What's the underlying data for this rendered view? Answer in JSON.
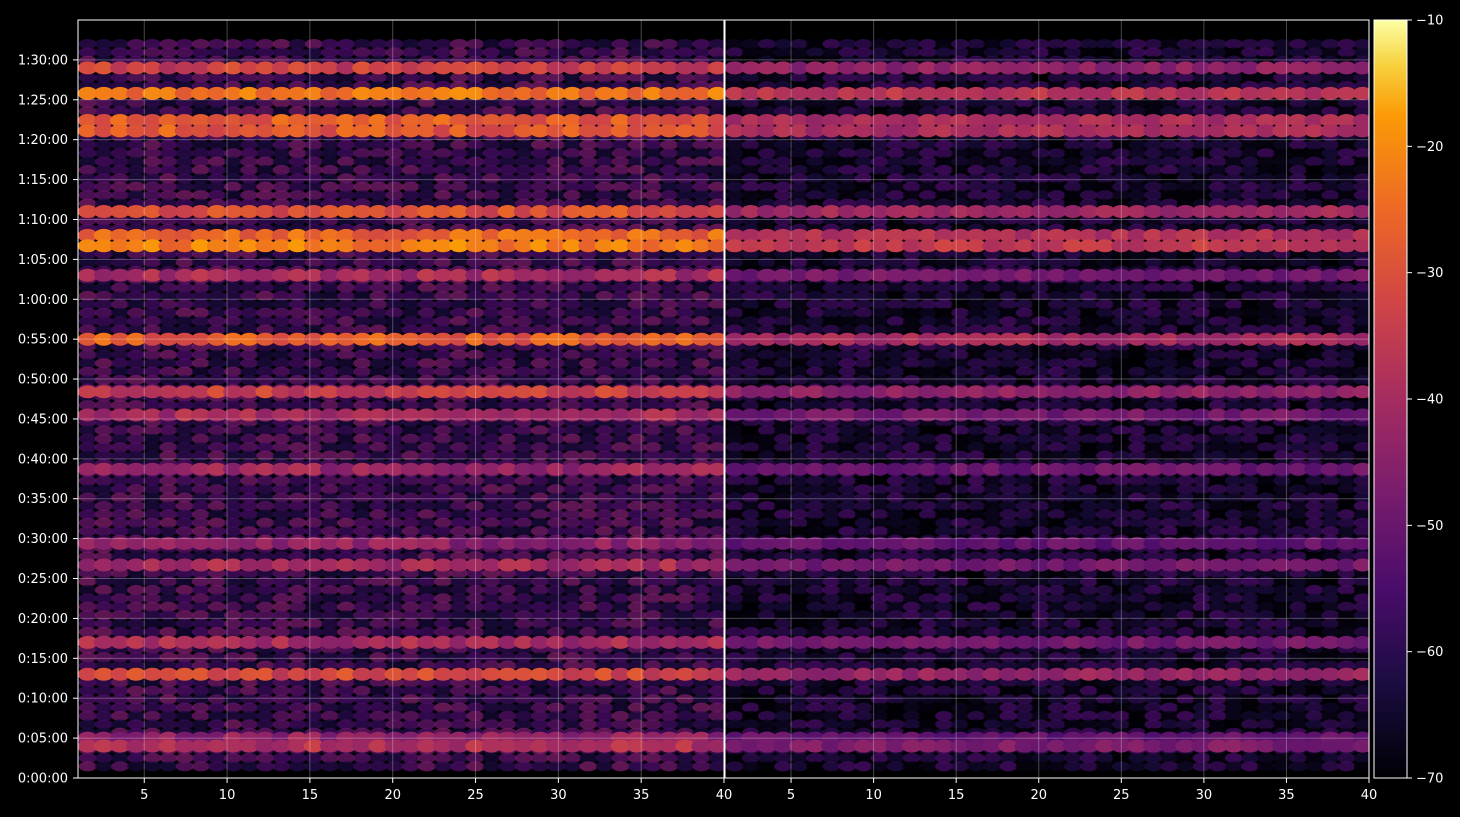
{
  "chart_data": {
    "type": "heatmap",
    "title": "",
    "xlabel": "",
    "ylabel": "",
    "grid": true,
    "colormap": "inferno",
    "background": "#000000",
    "y_axis": {
      "range_seconds": [
        0,
        5700
      ],
      "ticks": [
        "0:00:00",
        "0:05:00",
        "0:10:00",
        "0:15:00",
        "0:20:00",
        "0:25:00",
        "0:30:00",
        "0:35:00",
        "0:40:00",
        "0:45:00",
        "0:50:00",
        "0:55:00",
        "1:00:00",
        "1:05:00",
        "1:10:00",
        "1:15:00",
        "1:20:00",
        "1:25:00",
        "1:30:00"
      ]
    },
    "panels": [
      {
        "name": "",
        "xlim": [
          1,
          40
        ],
        "xticks": [
          "5",
          "10",
          "15",
          "20",
          "25",
          "30",
          "35",
          "40"
        ],
        "intensity_scale": 1.0
      },
      {
        "name": "",
        "xlim": [
          1,
          40
        ],
        "xticks": [
          "5",
          "10",
          "15",
          "20",
          "25",
          "30",
          "35",
          "40"
        ],
        "intensity_scale": 0.72
      }
    ],
    "colorbar": {
      "range": [
        -70,
        -10
      ],
      "ticks": [
        "−10",
        "−20",
        "−30",
        "−40",
        "−50",
        "−60",
        "−70"
      ]
    },
    "bright_rows": [
      {
        "t": "1:29:00",
        "level": -34
      },
      {
        "t": "1:25:48",
        "level": -24
      },
      {
        "t": "1:22:24",
        "level": -28
      },
      {
        "t": "1:21:06",
        "level": -28
      },
      {
        "t": "1:11:00",
        "level": -30
      },
      {
        "t": "1:08:00",
        "level": -26
      },
      {
        "t": "1:06:42",
        "level": -22
      },
      {
        "t": "1:03:00",
        "level": -40
      },
      {
        "t": "0:55:00",
        "level": -28
      },
      {
        "t": "0:48:24",
        "level": -34
      },
      {
        "t": "0:45:30",
        "level": -40
      },
      {
        "t": "0:38:42",
        "level": -42
      },
      {
        "t": "0:29:24",
        "level": -44
      },
      {
        "t": "0:26:42",
        "level": -40
      },
      {
        "t": "0:17:00",
        "level": -40
      },
      {
        "t": "0:13:00",
        "level": -32
      },
      {
        "t": "0:05:00",
        "level": -44
      },
      {
        "t": "0:04:00",
        "level": -38
      }
    ]
  }
}
